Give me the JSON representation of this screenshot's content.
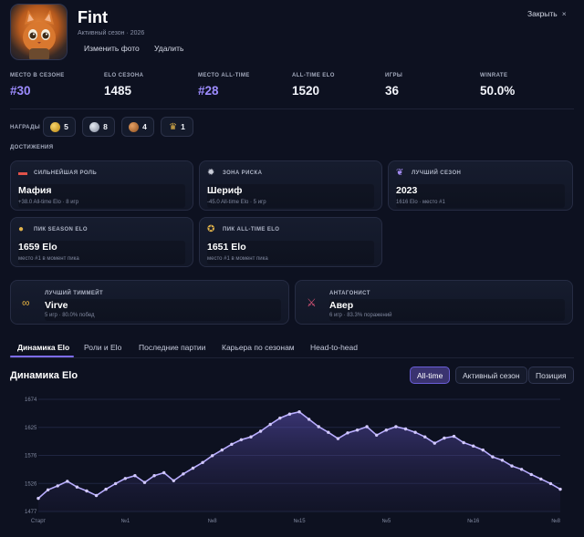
{
  "header": {
    "name": "Fint",
    "season_line": "Активный сезон · 2026",
    "change_photo": "Изменить фото",
    "delete": "Удалить",
    "close": "Закрыть",
    "close_glyph": "×"
  },
  "stats": [
    {
      "label": "МЕСТО В СЕЗОНЕ",
      "value": "#30"
    },
    {
      "label": "ELO СЕЗОНА",
      "value": "1485"
    },
    {
      "label": "МЕСТО ALL-TIME",
      "value": "#28"
    },
    {
      "label": "ALL-TIME ELO",
      "value": "1520"
    },
    {
      "label": "ИГРЫ",
      "value": "36"
    },
    {
      "label": "WINRATE",
      "value": "50.0%"
    }
  ],
  "awards": {
    "label": "НАГРАДЫ",
    "items": [
      {
        "icon": "gold-medal-icon",
        "count": "5"
      },
      {
        "icon": "silver-medal-icon",
        "count": "8"
      },
      {
        "icon": "bronze-medal-icon",
        "count": "4"
      },
      {
        "icon": "trophy-icon",
        "count": "1"
      }
    ]
  },
  "achievements": {
    "label": "ДОСТИЖЕНИЯ",
    "cards": [
      {
        "icon": "hat-icon",
        "title": "СИЛЬНЕЙШАЯ РОЛЬ",
        "value": "Мафия",
        "sub": "+38.0 All-time Elo · 8 игр"
      },
      {
        "icon": "gear-icon",
        "title": "ЗОНА РИСКА",
        "value": "Шериф",
        "sub": "-45.0 All-time Elo · 5 игр"
      },
      {
        "icon": "laurel-icon",
        "title": "ЛУЧШИЙ СЕЗОН",
        "value": "2023",
        "sub": "1616 Elo · место #1"
      },
      {
        "icon": "medal-icon",
        "title": "ПИК SEASON ELO",
        "value": "1659 Elo",
        "sub": "место #1 в момент пика"
      },
      {
        "icon": "badge-icon",
        "title": "ПИК ALL-TIME ELO",
        "value": "1651 Elo",
        "sub": "место #1 в момент пика"
      }
    ]
  },
  "relations": [
    {
      "icon": "handshake-icon",
      "title": "ЛУЧШИЙ ТИММЕЙТ",
      "value": "Virve",
      "sub": "5 игр · 80.0% побед"
    },
    {
      "icon": "crossed-swords-icon",
      "title": "АНТАГОНИСТ",
      "value": "Авер",
      "sub": "6 игр · 83.3% поражений"
    }
  ],
  "tabs": [
    "Динамика Elo",
    "Роли и Elo",
    "Последние партии",
    "Карьера по сезонам",
    "Head-to-head"
  ],
  "section_title": "Динамика Elo",
  "filters": [
    "All-time",
    "Активный сезон",
    "Позиция"
  ],
  "colors": {
    "accent": "#7d6cf0",
    "line": "#b9adff",
    "purple_value": "#9d8cff"
  },
  "chart_data": {
    "type": "area",
    "title": "",
    "ylim": [
      1477,
      1674
    ],
    "y_ticks": [
      "1674",
      "1625",
      "1576",
      "1526",
      "1477"
    ],
    "x_ticks": [
      "Старт",
      "№1",
      "№8",
      "№15",
      "№5",
      "№16",
      "№8"
    ],
    "grid": true,
    "series": [
      {
        "values": [
          1500,
          1515,
          1522,
          1530,
          1520,
          1513,
          1505,
          1516,
          1526,
          1535,
          1540,
          1528,
          1540,
          1545,
          1531,
          1543,
          1553,
          1563,
          1575,
          1585,
          1595,
          1603,
          1608,
          1618,
          1630,
          1641,
          1648,
          1652,
          1639,
          1626,
          1616,
          1605,
          1615,
          1620,
          1626,
          1611,
          1620,
          1626,
          1622,
          1616,
          1608,
          1597,
          1606,
          1609,
          1598,
          1592,
          1585,
          1573,
          1567,
          1557,
          1551,
          1542,
          1534,
          1526,
          1516
        ]
      }
    ]
  }
}
